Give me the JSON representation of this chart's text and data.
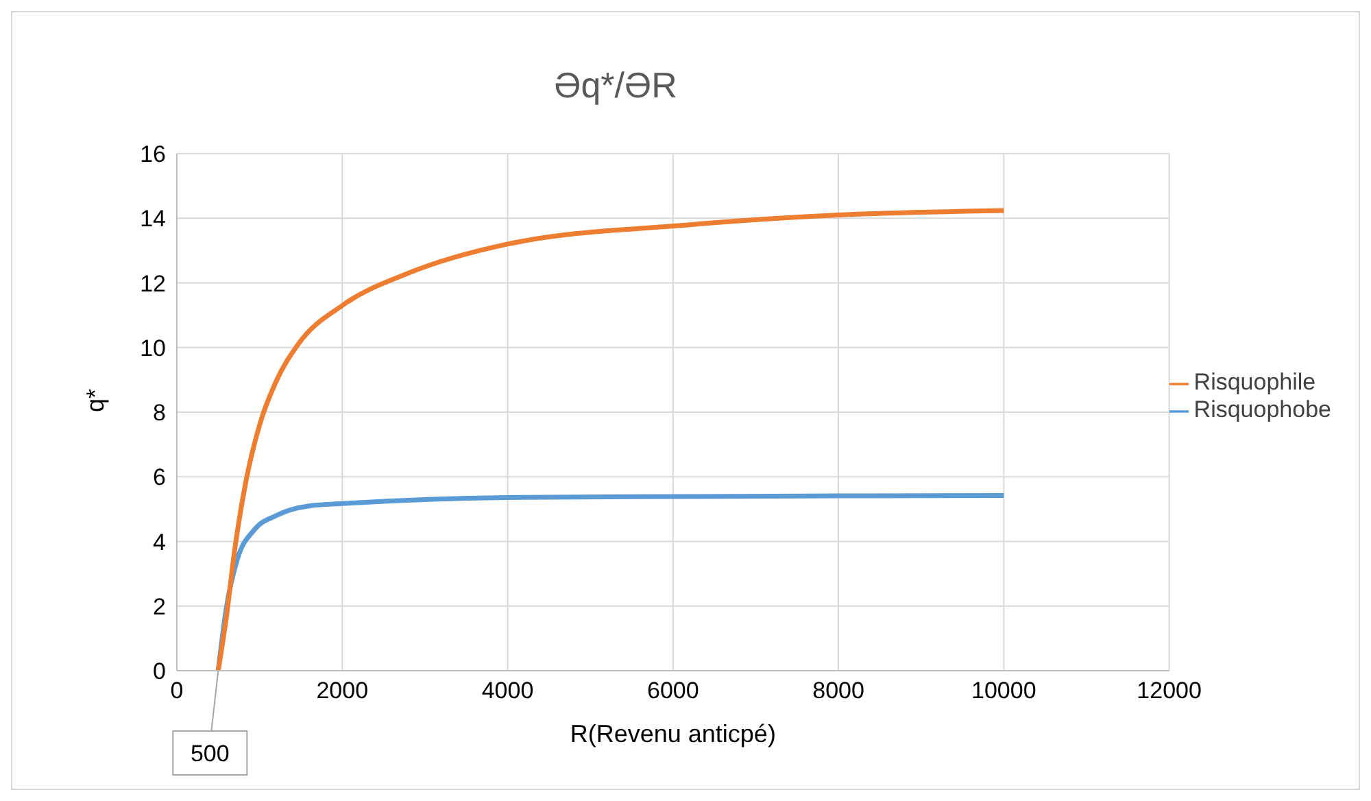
{
  "chart_data": {
    "type": "line",
    "title": "Əq*/ƏR",
    "xlabel": "R(Revenu anticpé)",
    "ylabel": "q*",
    "xlim": [
      0,
      12000
    ],
    "xticks": [
      0,
      2000,
      4000,
      6000,
      8000,
      10000,
      12000
    ],
    "ylim": [
      0,
      16
    ],
    "yticks": [
      0,
      2,
      4,
      6,
      8,
      10,
      12,
      14,
      16
    ],
    "grid": true,
    "legend": "right",
    "marker": "none",
    "line_style": "solid",
    "annotations": [
      {
        "text": "500",
        "x": 500,
        "y": 0
      }
    ],
    "series": [
      {
        "name": "Risquophobe",
        "color": "#5b9bd5",
        "x": [
          500,
          600,
          733,
          933,
          1200,
          1600,
          2000,
          4000,
          6200,
          8000,
          10000
        ],
        "values": [
          0,
          1.97,
          3.46,
          4.35,
          4.8,
          5.1,
          5.17,
          5.36,
          5.39,
          5.41,
          5.42
        ]
      },
      {
        "name": "Risquophile",
        "color": "#ed7d31",
        "x": [
          500,
          600,
          700,
          833,
          1000,
          1200,
          1467,
          2000,
          2800,
          4000,
          6200,
          8000,
          10000
        ],
        "values": [
          0,
          1.68,
          3.75,
          5.83,
          7.6,
          8.95,
          10.1,
          11.3,
          12.3,
          13.2,
          13.8,
          14.1,
          14.24
        ]
      }
    ]
  }
}
